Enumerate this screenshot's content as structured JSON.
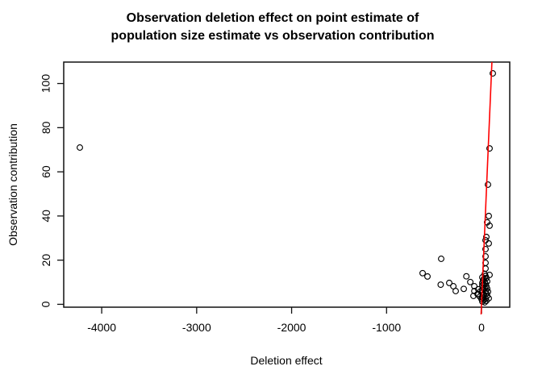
{
  "title": {
    "line1": "Observation deletion effect on point estimate of",
    "line2": "population size estimate vs observation contribution"
  },
  "chart_data": {
    "type": "scatter",
    "title": "Observation deletion effect on point estimate of population size estimate vs observation contribution",
    "xlabel": "Deletion effect",
    "ylabel": "Observation contribution",
    "xlim": [
      -4400,
      297
    ],
    "ylim": [
      -1.3,
      109.7
    ],
    "x_ticks": [
      -4000,
      -3000,
      -2000,
      -1000,
      0
    ],
    "y_ticks": [
      0,
      20,
      40,
      60,
      80,
      100
    ],
    "grid": false,
    "legend": null,
    "point_style": {
      "marker": "open-circle",
      "color": "#000000"
    },
    "reference_line": {
      "slope": 1,
      "intercept": 0,
      "color": "#FF0000"
    },
    "points": [
      [
        -4230,
        71
      ],
      [
        -620,
        14.1
      ],
      [
        -569,
        12.6
      ],
      [
        -425,
        20.6
      ],
      [
        -430,
        8.9
      ],
      [
        -340,
        9.7
      ],
      [
        -297,
        8.2
      ],
      [
        -272,
        6.0
      ],
      [
        -187,
        7.0
      ],
      [
        -160,
        12.7
      ],
      [
        -118,
        10.1
      ],
      [
        -85,
        3.8
      ],
      [
        -76,
        8.2
      ],
      [
        -76,
        6.0
      ],
      [
        -34,
        4.6
      ],
      [
        119,
        104.6
      ],
      [
        85,
        70.6
      ],
      [
        68,
        54.2
      ],
      [
        76,
        40.0
      ],
      [
        59,
        37.1
      ],
      [
        85,
        35.6
      ],
      [
        51,
        30.5
      ],
      [
        42,
        29.0
      ],
      [
        76,
        27.6
      ],
      [
        42,
        25.0
      ],
      [
        42,
        21.7
      ],
      [
        42,
        18.8
      ],
      [
        42,
        16.2
      ],
      [
        34,
        13.7
      ],
      [
        85,
        13.3
      ],
      [
        8,
        12.2
      ],
      [
        51,
        11.9
      ],
      [
        17,
        10.8
      ],
      [
        59,
        10.4
      ],
      [
        8,
        9.7
      ],
      [
        42,
        9.3
      ],
      [
        8,
        8.6
      ],
      [
        51,
        8.2
      ],
      [
        17,
        7.5
      ],
      [
        59,
        7.1
      ],
      [
        8,
        6.4
      ],
      [
        42,
        6.0
      ],
      [
        8,
        5.3
      ],
      [
        51,
        4.9
      ],
      [
        -34,
        6.8
      ],
      [
        -42,
        4.6
      ],
      [
        17,
        4.2
      ],
      [
        59,
        3.8
      ],
      [
        8,
        3.1
      ],
      [
        42,
        2.7
      ],
      [
        0,
        2.4
      ],
      [
        25,
        2.0
      ],
      [
        51,
        1.6
      ],
      [
        8,
        1.3
      ],
      [
        34,
        0.9
      ],
      [
        76,
        2.7
      ],
      [
        68,
        5.7
      ],
      [
        -8,
        6.0
      ],
      [
        -17,
        3.5
      ],
      [
        25,
        4.4
      ],
      [
        25,
        8.9
      ],
      [
        34,
        7.3
      ],
      [
        25,
        11.5
      ],
      [
        34,
        10.0
      ],
      [
        17,
        2.9
      ],
      [
        42,
        12.8
      ]
    ]
  },
  "colors": {
    "background": "#FFFFFF",
    "axis": "#111111",
    "points": "#000000",
    "reference_line": "#FF0000",
    "text": "#000000"
  }
}
